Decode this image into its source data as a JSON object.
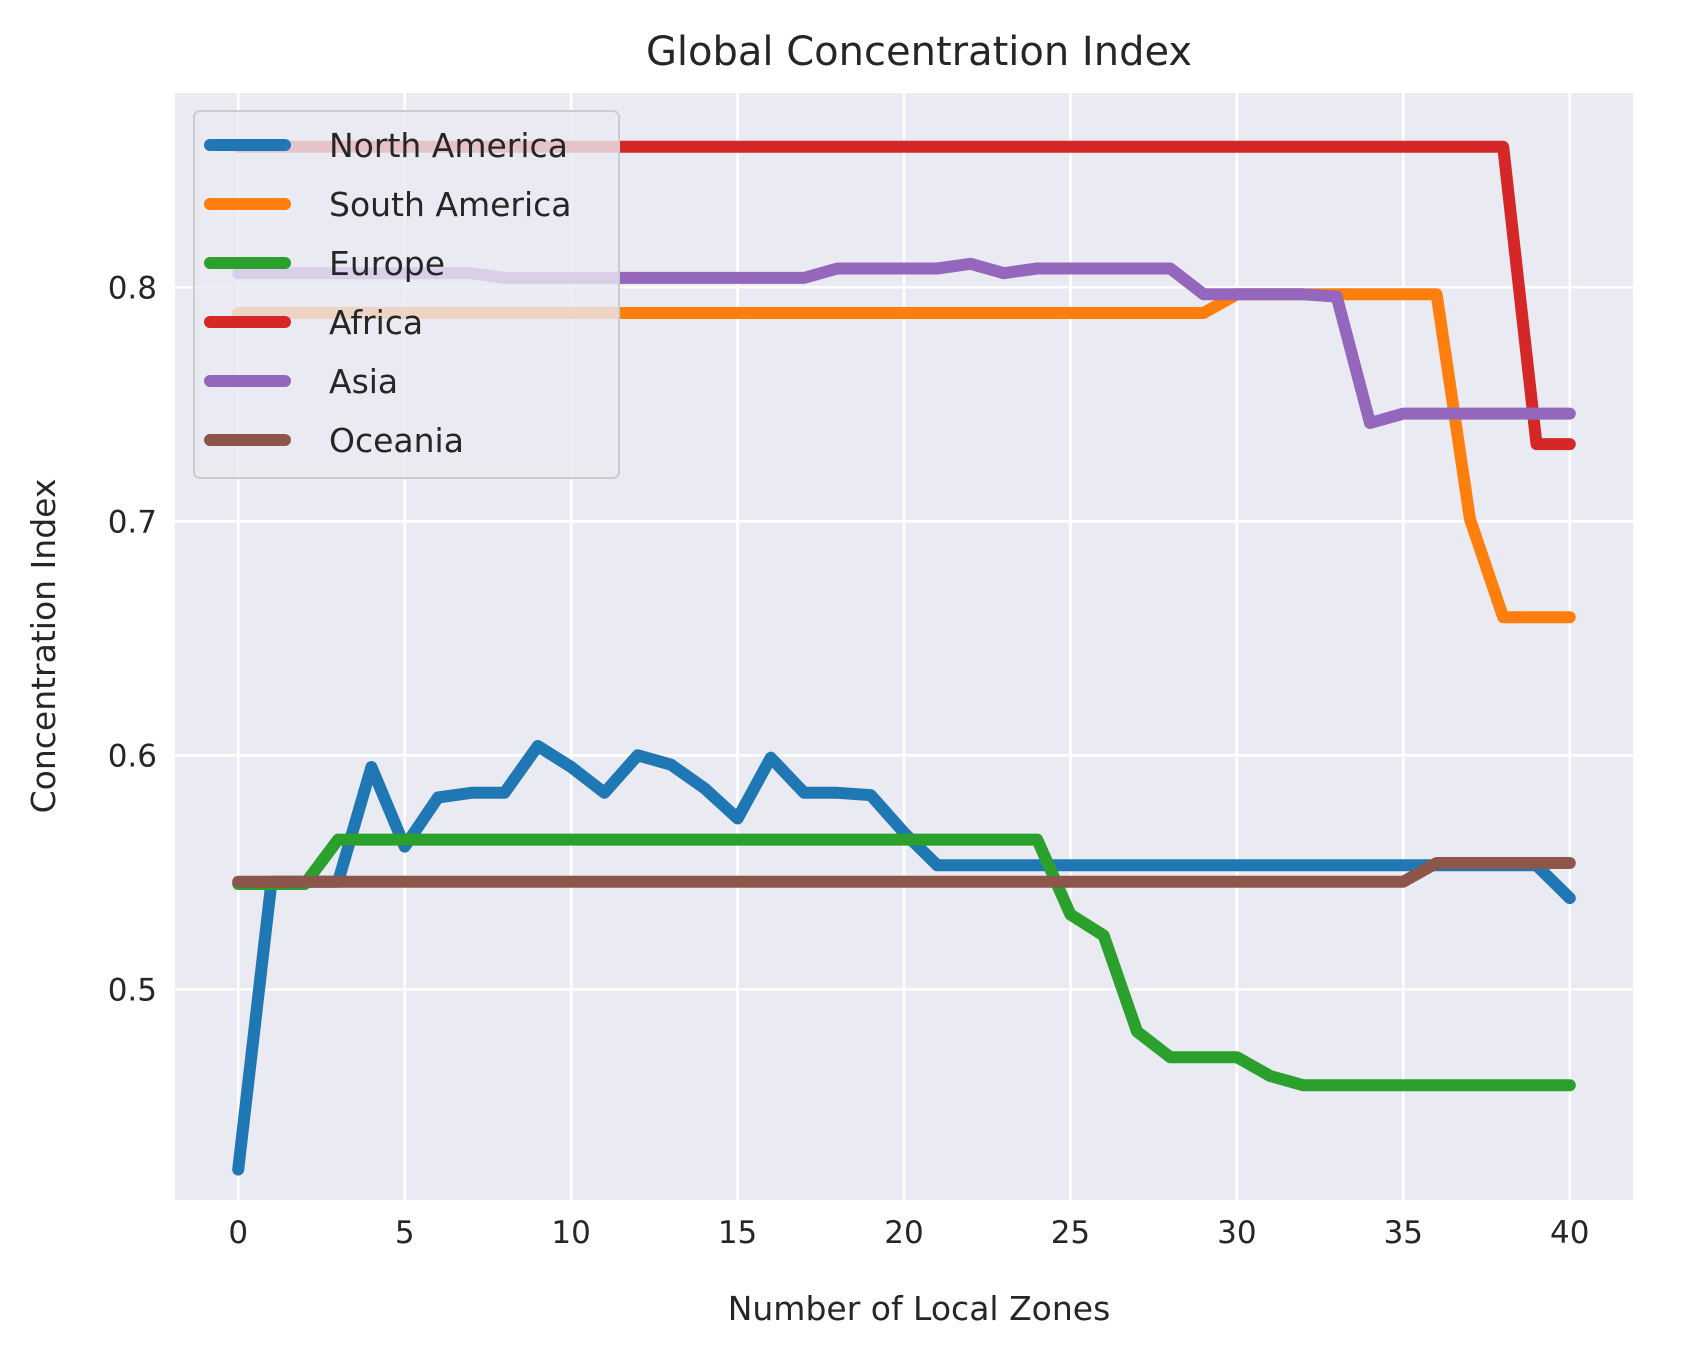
{
  "chart_data": {
    "type": "line",
    "title": "Global Concentration Index",
    "xlabel": "Number of Local Zones",
    "ylabel": "Concentration Index",
    "xlim": [
      -1.9,
      41.9
    ],
    "ylim": [
      0.41,
      0.883
    ],
    "xticks": [
      0,
      5,
      10,
      15,
      20,
      25,
      30,
      35,
      40
    ],
    "yticks": [
      0.5,
      0.6,
      0.7,
      0.8
    ],
    "ytick_labels": [
      "0.5",
      "0.6",
      "0.7",
      "0.8"
    ],
    "grid": true,
    "legend_position": "top-left",
    "x": [
      0,
      1,
      2,
      3,
      4,
      5,
      6,
      7,
      8,
      9,
      10,
      11,
      12,
      13,
      14,
      15,
      16,
      17,
      18,
      19,
      20,
      21,
      22,
      23,
      24,
      25,
      26,
      27,
      28,
      29,
      30,
      31,
      32,
      33,
      34,
      35,
      36,
      37,
      38,
      39,
      40
    ],
    "series": [
      {
        "name": "North America",
        "color": "#1f77b4",
        "values": [
          0.423,
          0.546,
          0.546,
          0.546,
          0.595,
          0.561,
          0.582,
          0.584,
          0.584,
          0.604,
          0.595,
          0.584,
          0.6,
          0.596,
          0.586,
          0.573,
          0.599,
          0.584,
          0.584,
          0.583,
          0.567,
          0.553,
          0.553,
          0.553,
          0.553,
          0.553,
          0.553,
          0.553,
          0.553,
          0.553,
          0.553,
          0.553,
          0.553,
          0.553,
          0.553,
          0.553,
          0.553,
          0.553,
          0.553,
          0.553,
          0.539
        ]
      },
      {
        "name": "South America",
        "color": "#ff7f0e",
        "values": [
          0.789,
          0.789,
          0.789,
          0.789,
          0.789,
          0.789,
          0.789,
          0.789,
          0.789,
          0.789,
          0.789,
          0.789,
          0.789,
          0.789,
          0.789,
          0.789,
          0.789,
          0.789,
          0.789,
          0.789,
          0.789,
          0.789,
          0.789,
          0.789,
          0.789,
          0.789,
          0.789,
          0.789,
          0.789,
          0.789,
          0.797,
          0.797,
          0.797,
          0.797,
          0.797,
          0.797,
          0.797,
          0.701,
          0.659,
          0.659,
          0.659
        ]
      },
      {
        "name": "Europe",
        "color": "#2ca02c",
        "values": [
          0.545,
          0.545,
          0.545,
          0.564,
          0.564,
          0.564,
          0.564,
          0.564,
          0.564,
          0.564,
          0.564,
          0.564,
          0.564,
          0.564,
          0.564,
          0.564,
          0.564,
          0.564,
          0.564,
          0.564,
          0.564,
          0.564,
          0.564,
          0.564,
          0.564,
          0.532,
          0.523,
          0.482,
          0.471,
          0.471,
          0.471,
          0.463,
          0.459,
          0.459,
          0.459,
          0.459,
          0.459,
          0.459,
          0.459,
          0.459,
          0.459
        ]
      },
      {
        "name": "Africa",
        "color": "#d62728",
        "values": [
          0.86,
          0.86,
          0.86,
          0.86,
          0.86,
          0.86,
          0.86,
          0.86,
          0.86,
          0.86,
          0.86,
          0.86,
          0.86,
          0.86,
          0.86,
          0.86,
          0.86,
          0.86,
          0.86,
          0.86,
          0.86,
          0.86,
          0.86,
          0.86,
          0.86,
          0.86,
          0.86,
          0.86,
          0.86,
          0.86,
          0.86,
          0.86,
          0.86,
          0.86,
          0.86,
          0.86,
          0.86,
          0.86,
          0.86,
          0.733,
          0.733
        ]
      },
      {
        "name": "Asia",
        "color": "#9467bd",
        "values": [
          0.806,
          0.806,
          0.806,
          0.806,
          0.806,
          0.806,
          0.806,
          0.806,
          0.804,
          0.804,
          0.804,
          0.804,
          0.804,
          0.804,
          0.804,
          0.804,
          0.804,
          0.804,
          0.808,
          0.808,
          0.808,
          0.808,
          0.81,
          0.806,
          0.808,
          0.808,
          0.808,
          0.808,
          0.808,
          0.797,
          0.797,
          0.797,
          0.797,
          0.796,
          0.742,
          0.746,
          0.746,
          0.746,
          0.746,
          0.746,
          0.746
        ]
      },
      {
        "name": "Oceania",
        "color": "#8c564b",
        "values": [
          0.546,
          0.546,
          0.546,
          0.546,
          0.546,
          0.546,
          0.546,
          0.546,
          0.546,
          0.546,
          0.546,
          0.546,
          0.546,
          0.546,
          0.546,
          0.546,
          0.546,
          0.546,
          0.546,
          0.546,
          0.546,
          0.546,
          0.546,
          0.546,
          0.546,
          0.546,
          0.546,
          0.546,
          0.546,
          0.546,
          0.546,
          0.546,
          0.546,
          0.546,
          0.546,
          0.546,
          0.554,
          0.554,
          0.554,
          0.554,
          0.554
        ]
      }
    ]
  }
}
